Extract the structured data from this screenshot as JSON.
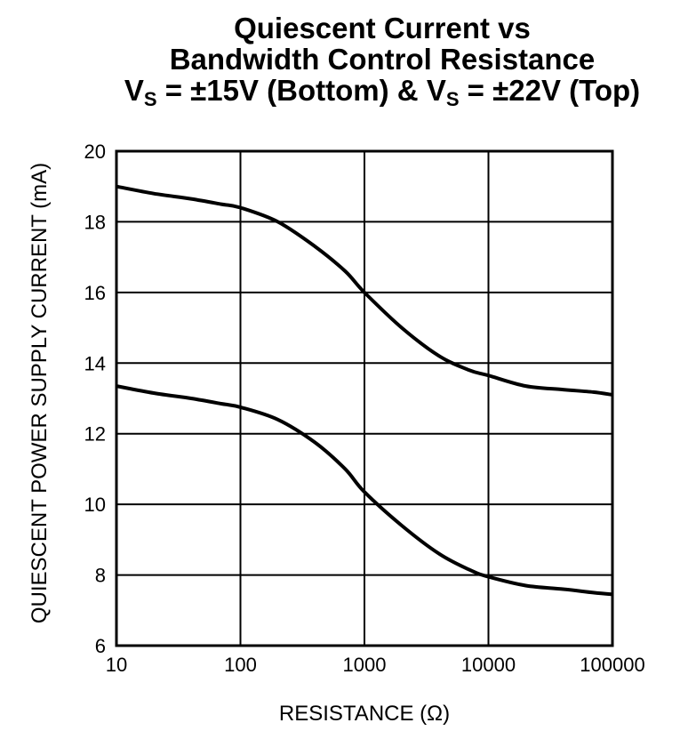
{
  "title": {
    "line1": "Quiescent Current vs",
    "line2": "Bandwidth Control Resistance",
    "line3": {
      "v1": "V",
      "v1_sub": "S",
      "mid1": " = ±15V (Bottom) & ",
      "v2": "V",
      "v2_sub": "S",
      "mid2": " = ±22V (Top)"
    }
  },
  "chart_data": {
    "type": "line",
    "title": "Quiescent Current vs Bandwidth Control Resistance V_S = ±15V (Bottom) & V_S = ±22V (Top)",
    "xlabel": "RESISTANCE (Ω)",
    "ylabel": "QUIESCENT POWER SUPPLY CURRENT (mA)",
    "xscale": "log",
    "xlim": [
      10,
      100000
    ],
    "ylim": [
      6,
      20
    ],
    "grid": true,
    "x_ticks": [
      "10",
      "100",
      "1000",
      "10000",
      "100000"
    ],
    "y_ticks": [
      "6",
      "8",
      "10",
      "12",
      "14",
      "16",
      "18",
      "20"
    ],
    "series": [
      {
        "label": "Top",
        "points": [
          [
            10,
            19.0
          ],
          [
            20,
            18.8
          ],
          [
            40,
            18.65
          ],
          [
            70,
            18.5
          ],
          [
            100,
            18.4
          ],
          [
            200,
            18.0
          ],
          [
            400,
            17.3
          ],
          [
            700,
            16.6
          ],
          [
            1000,
            16.0
          ],
          [
            2000,
            15.0
          ],
          [
            4000,
            14.2
          ],
          [
            7000,
            13.8
          ],
          [
            10000,
            13.65
          ],
          [
            20000,
            13.35
          ],
          [
            40000,
            13.25
          ],
          [
            70000,
            13.18
          ],
          [
            100000,
            13.1
          ]
        ]
      },
      {
        "label": "Bottom",
        "points": [
          [
            10,
            13.35
          ],
          [
            20,
            13.15
          ],
          [
            40,
            13.0
          ],
          [
            70,
            12.85
          ],
          [
            100,
            12.75
          ],
          [
            200,
            12.4
          ],
          [
            400,
            11.75
          ],
          [
            700,
            11.0
          ],
          [
            1000,
            10.35
          ],
          [
            2000,
            9.4
          ],
          [
            4000,
            8.6
          ],
          [
            7000,
            8.15
          ],
          [
            10000,
            7.95
          ],
          [
            20000,
            7.7
          ],
          [
            40000,
            7.6
          ],
          [
            70000,
            7.5
          ],
          [
            100000,
            7.45
          ]
        ]
      }
    ]
  }
}
